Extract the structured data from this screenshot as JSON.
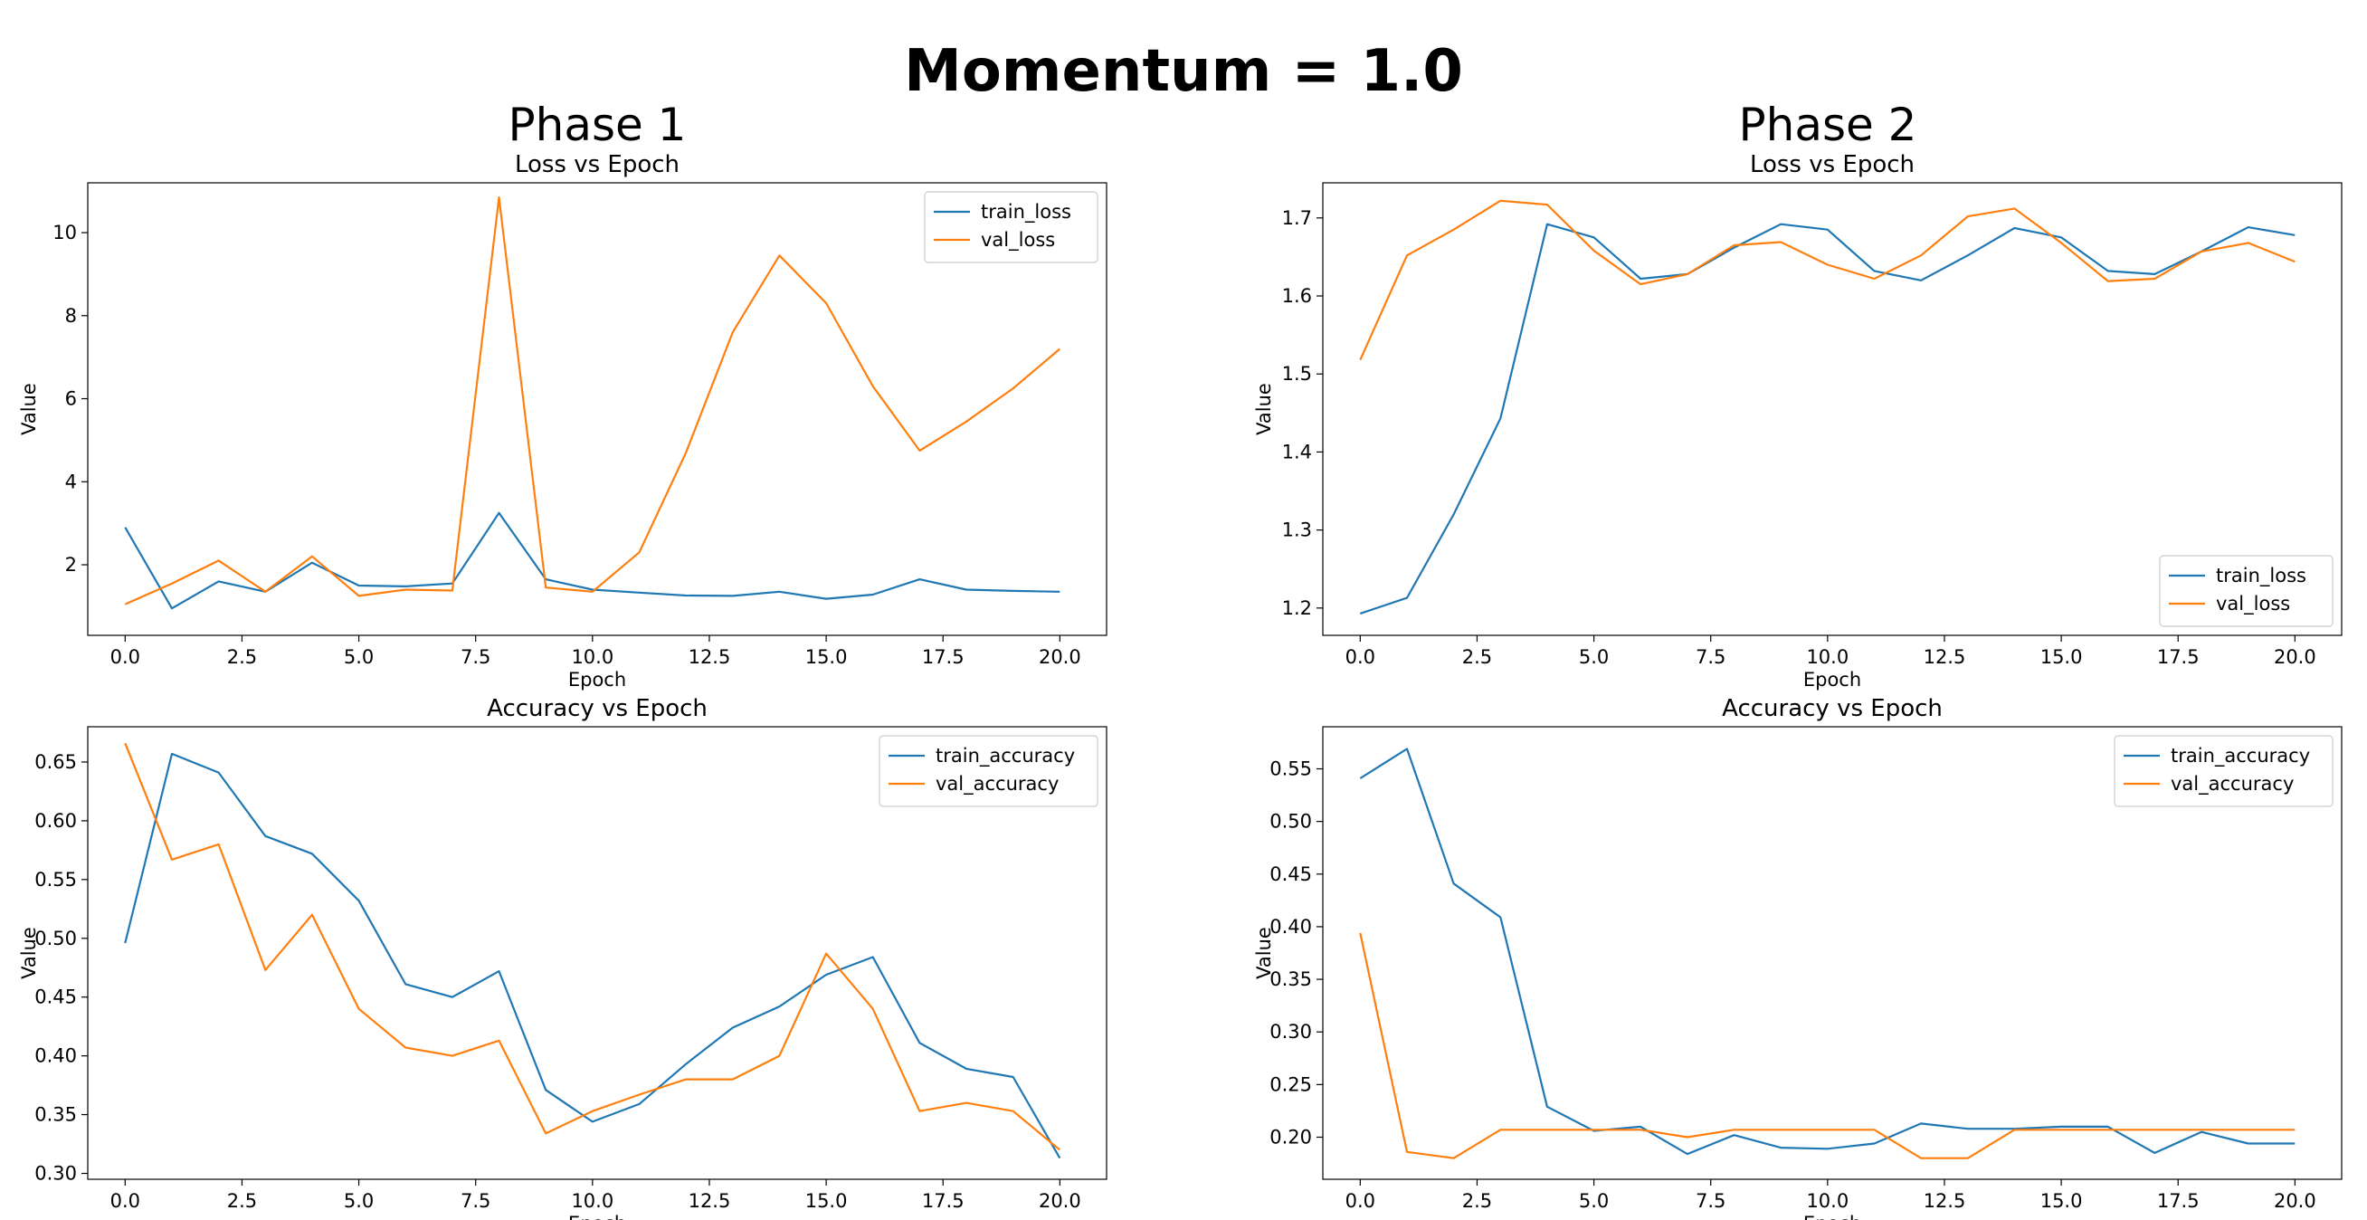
{
  "figure": {
    "suptitle": "Momentum = 1.0",
    "phase_titles": [
      "Phase 1",
      "Phase 2"
    ]
  },
  "colors": {
    "train": "#1f77b4",
    "val": "#ff7f0e"
  },
  "chart_data": [
    {
      "type": "line",
      "title": "Loss vs Epoch",
      "xlabel": "Epoch",
      "ylabel": "Value",
      "x": [
        0,
        1,
        2,
        3,
        4,
        5,
        6,
        7,
        8,
        9,
        10,
        11,
        12,
        13,
        14,
        15,
        16,
        17,
        18,
        19,
        20
      ],
      "xlim": [
        -0.8,
        21.0
      ],
      "ylim": [
        0.3,
        11.2
      ],
      "xticks": [
        0.0,
        2.5,
        5.0,
        7.5,
        10.0,
        12.5,
        15.0,
        17.5,
        20.0
      ],
      "yticks": [
        2,
        4,
        6,
        8,
        10
      ],
      "legend": "top-right",
      "series": [
        {
          "name": "train_loss",
          "values": [
            2.9,
            0.95,
            1.6,
            1.35,
            2.05,
            1.5,
            1.48,
            1.55,
            3.25,
            1.65,
            1.4,
            1.33,
            1.26,
            1.25,
            1.35,
            1.18,
            1.28,
            1.65,
            1.4,
            1.37,
            1.35
          ]
        },
        {
          "name": "val_loss",
          "values": [
            1.05,
            1.55,
            2.1,
            1.35,
            2.2,
            1.25,
            1.4,
            1.38,
            10.85,
            1.45,
            1.35,
            2.3,
            4.7,
            7.6,
            9.45,
            8.3,
            6.3,
            4.75,
            5.45,
            6.25,
            7.2
          ]
        }
      ]
    },
    {
      "type": "line",
      "title": "Loss vs Epoch",
      "xlabel": "Epoch",
      "ylabel": "Value",
      "x": [
        0,
        1,
        2,
        3,
        4,
        5,
        6,
        7,
        8,
        9,
        10,
        11,
        12,
        13,
        14,
        15,
        16,
        17,
        18,
        19,
        20
      ],
      "xlim": [
        -0.8,
        21.0
      ],
      "ylim": [
        1.165,
        1.745
      ],
      "xticks": [
        0.0,
        2.5,
        5.0,
        7.5,
        10.0,
        12.5,
        15.0,
        17.5,
        20.0
      ],
      "yticks": [
        1.2,
        1.3,
        1.4,
        1.5,
        1.6,
        1.7
      ],
      "legend": "bottom-right",
      "series": [
        {
          "name": "train_loss",
          "values": [
            1.193,
            1.213,
            1.32,
            1.443,
            1.692,
            1.675,
            1.622,
            1.628,
            1.662,
            1.692,
            1.685,
            1.632,
            1.62,
            1.652,
            1.687,
            1.675,
            1.632,
            1.628,
            1.657,
            1.688,
            1.678
          ]
        },
        {
          "name": "val_loss",
          "values": [
            1.518,
            1.652,
            1.685,
            1.722,
            1.717,
            1.658,
            1.615,
            1.628,
            1.665,
            1.669,
            1.64,
            1.622,
            1.652,
            1.702,
            1.712,
            1.668,
            1.619,
            1.622,
            1.657,
            1.668,
            1.644
          ]
        }
      ]
    },
    {
      "type": "line",
      "title": "Accuracy vs Epoch",
      "xlabel": "Epoch",
      "ylabel": "Value",
      "x": [
        0,
        1,
        2,
        3,
        4,
        5,
        6,
        7,
        8,
        9,
        10,
        11,
        12,
        13,
        14,
        15,
        16,
        17,
        18,
        19,
        20
      ],
      "xlim": [
        -0.8,
        21.0
      ],
      "ylim": [
        0.295,
        0.68
      ],
      "xticks": [
        0.0,
        2.5,
        5.0,
        7.5,
        10.0,
        12.5,
        15.0,
        17.5,
        20.0
      ],
      "yticks": [
        0.3,
        0.35,
        0.4,
        0.45,
        0.5,
        0.55,
        0.6,
        0.65
      ],
      "legend": "top-right",
      "series": [
        {
          "name": "train_accuracy",
          "values": [
            0.496,
            0.657,
            0.641,
            0.587,
            0.572,
            0.532,
            0.461,
            0.45,
            0.472,
            0.371,
            0.344,
            0.359,
            0.393,
            0.424,
            0.442,
            0.469,
            0.484,
            0.411,
            0.389,
            0.382,
            0.313
          ]
        },
        {
          "name": "val_accuracy",
          "values": [
            0.666,
            0.567,
            0.58,
            0.473,
            0.52,
            0.44,
            0.407,
            0.4,
            0.413,
            0.334,
            0.353,
            0.367,
            0.38,
            0.38,
            0.4,
            0.487,
            0.44,
            0.353,
            0.36,
            0.353,
            0.32
          ]
        }
      ]
    },
    {
      "type": "line",
      "title": "Accuracy vs Epoch",
      "xlabel": "Epoch",
      "ylabel": "Value",
      "x": [
        0,
        1,
        2,
        3,
        4,
        5,
        6,
        7,
        8,
        9,
        10,
        11,
        12,
        13,
        14,
        15,
        16,
        17,
        18,
        19,
        20
      ],
      "xlim": [
        -0.8,
        21.0
      ],
      "ylim": [
        0.16,
        0.59
      ],
      "xticks": [
        0.0,
        2.5,
        5.0,
        7.5,
        10.0,
        12.5,
        15.0,
        17.5,
        20.0
      ],
      "yticks": [
        0.2,
        0.25,
        0.3,
        0.35,
        0.4,
        0.45,
        0.5,
        0.55
      ],
      "legend": "top-right",
      "series": [
        {
          "name": "train_accuracy",
          "values": [
            0.541,
            0.569,
            0.441,
            0.409,
            0.229,
            0.206,
            0.21,
            0.184,
            0.202,
            0.19,
            0.189,
            0.194,
            0.213,
            0.208,
            0.208,
            0.21,
            0.21,
            0.185,
            0.205,
            0.194,
            0.194
          ]
        },
        {
          "name": "val_accuracy",
          "values": [
            0.394,
            0.186,
            0.18,
            0.207,
            0.207,
            0.207,
            0.207,
            0.2,
            0.207,
            0.207,
            0.207,
            0.207,
            0.18,
            0.18,
            0.207,
            0.207,
            0.207,
            0.207,
            0.207,
            0.207,
            0.207
          ]
        }
      ]
    }
  ]
}
